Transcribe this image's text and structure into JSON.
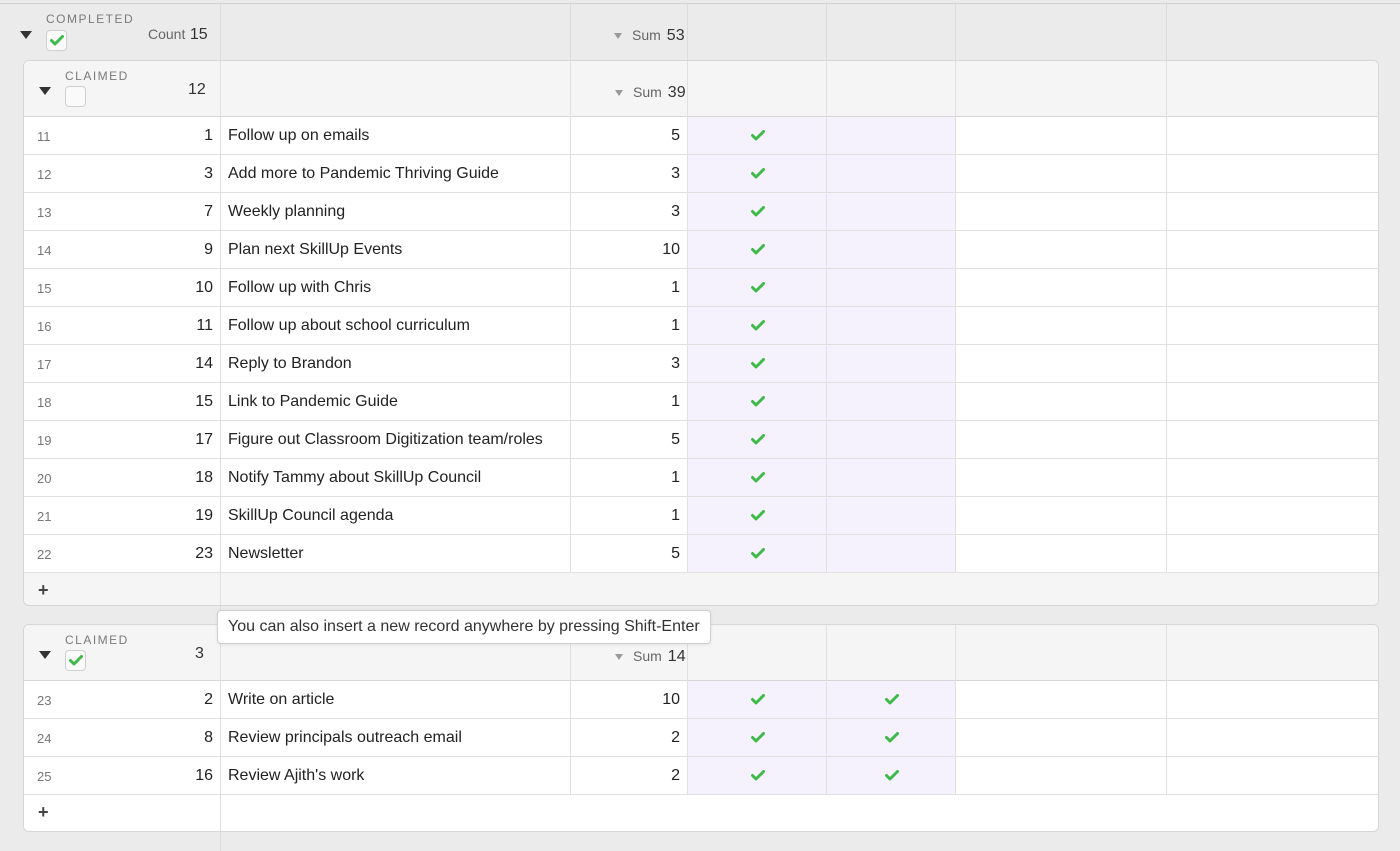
{
  "outer_group": {
    "label": "COMPLETED",
    "checked": true,
    "count_label": "Count",
    "count": "15",
    "sum_label": "Sum",
    "sum": "53"
  },
  "group_a": {
    "label": "CLAIMED",
    "checked": false,
    "count": "12",
    "sum_label": "Sum",
    "sum": "39",
    "rows": [
      {
        "rn": "11",
        "id": "1",
        "name": "Follow up on emails",
        "points": "5",
        "c1": true,
        "c2": false
      },
      {
        "rn": "12",
        "id": "3",
        "name": "Add more to Pandemic Thriving Guide",
        "points": "3",
        "c1": true,
        "c2": false
      },
      {
        "rn": "13",
        "id": "7",
        "name": "Weekly planning",
        "points": "3",
        "c1": true,
        "c2": false
      },
      {
        "rn": "14",
        "id": "9",
        "name": "Plan next SkillUp Events",
        "points": "10",
        "c1": true,
        "c2": false
      },
      {
        "rn": "15",
        "id": "10",
        "name": "Follow up with Chris",
        "points": "1",
        "c1": true,
        "c2": false
      },
      {
        "rn": "16",
        "id": "11",
        "name": "Follow up about school curriculum",
        "points": "1",
        "c1": true,
        "c2": false
      },
      {
        "rn": "17",
        "id": "14",
        "name": "Reply to Brandon",
        "points": "3",
        "c1": true,
        "c2": false
      },
      {
        "rn": "18",
        "id": "15",
        "name": "Link to Pandemic Guide",
        "points": "1",
        "c1": true,
        "c2": false
      },
      {
        "rn": "19",
        "id": "17",
        "name": "Figure out Classroom Digitization team/roles",
        "points": "5",
        "c1": true,
        "c2": false
      },
      {
        "rn": "20",
        "id": "18",
        "name": "Notify Tammy about SkillUp Council",
        "points": "1",
        "c1": true,
        "c2": false
      },
      {
        "rn": "21",
        "id": "19",
        "name": "SkillUp Council agenda",
        "points": "1",
        "c1": true,
        "c2": false
      },
      {
        "rn": "22",
        "id": "23",
        "name": "Newsletter",
        "points": "5",
        "c1": true,
        "c2": false
      }
    ],
    "add_label": "+"
  },
  "group_b": {
    "label": "CLAIMED",
    "checked": true,
    "count": "3",
    "sum_label": "Sum",
    "sum": "14",
    "rows": [
      {
        "rn": "23",
        "id": "2",
        "name": "Write on article",
        "points": "10",
        "c1": true,
        "c2": true
      },
      {
        "rn": "24",
        "id": "8",
        "name": "Review principals outreach email",
        "points": "2",
        "c1": true,
        "c2": true
      },
      {
        "rn": "25",
        "id": "16",
        "name": "Review Ajith's work",
        "points": "2",
        "c1": true,
        "c2": true
      }
    ],
    "add_label": "+"
  },
  "tooltip": "You can also insert a new record anywhere by pressing Shift-Enter",
  "colors": {
    "check_green": "#3fba4a",
    "highlight_column": "#f5f2fd",
    "background": "#ebebeb"
  }
}
